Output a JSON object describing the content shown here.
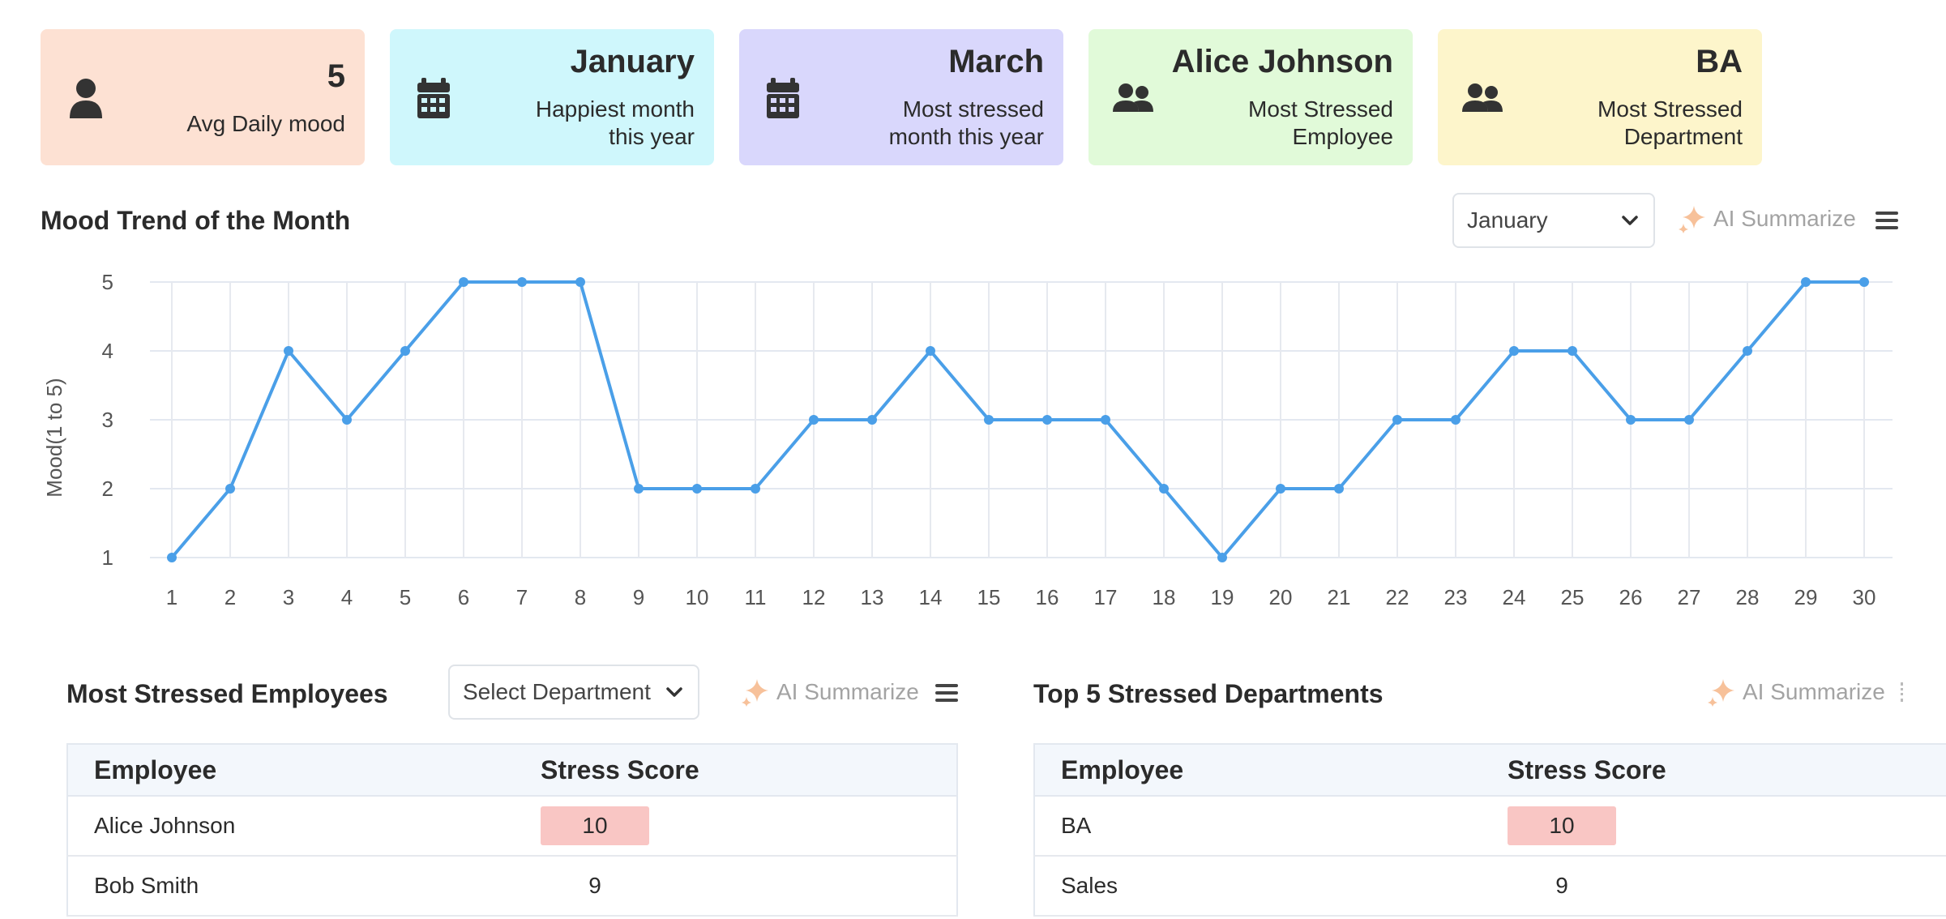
{
  "cards": [
    {
      "title": "5",
      "subtitle": "Avg Daily mood",
      "icon": "user-icon",
      "bg": "#fde1d3"
    },
    {
      "title": "January",
      "subtitle": "Happiest month this year",
      "icon": "calendar-icon",
      "bg": "#cff7fc"
    },
    {
      "title": "March",
      "subtitle": "Most stressed month this year",
      "icon": "calendar-icon",
      "bg": "#d9d7fc"
    },
    {
      "title": "Alice Johnson",
      "subtitle": "Most Stressed Employee",
      "icon": "users-icon",
      "bg": "#e1fad9"
    },
    {
      "title": "BA",
      "subtitle": "Most Stressed Department",
      "icon": "users-icon",
      "bg": "#fdf5cb"
    }
  ],
  "mood_trend": {
    "title": "Mood Trend of the Month",
    "month_select": "January",
    "ai_label": "AI Summarize"
  },
  "chart_data": {
    "type": "line",
    "x": [
      1,
      2,
      3,
      4,
      5,
      6,
      7,
      8,
      9,
      10,
      11,
      12,
      13,
      14,
      15,
      16,
      17,
      18,
      19,
      20,
      21,
      22,
      23,
      24,
      25,
      26,
      27,
      28,
      29,
      30
    ],
    "series": [
      {
        "values": [
          1,
          2,
          4,
          3,
          4,
          5,
          5,
          5,
          2,
          2,
          2,
          3,
          3,
          4,
          3,
          3,
          3,
          2,
          1,
          2,
          2,
          3,
          3,
          4,
          4,
          3,
          3,
          4,
          5,
          5
        ]
      }
    ],
    "title": "",
    "xlabel": "",
    "ylabel": "Mood(1 to 5)",
    "ylim": [
      1,
      5
    ],
    "yticks": [
      "1",
      "2",
      "3",
      "4",
      "5"
    ],
    "grid": true,
    "line_color": "#4a9fe8"
  },
  "employees": {
    "title": "Most Stressed Employees",
    "select_placeholder": "Select Department",
    "ai_label": "AI Summarize",
    "headers": [
      "Employee",
      "Stress Score"
    ],
    "rows": [
      {
        "name": "Alice Johnson",
        "score": "10"
      },
      {
        "name": "Bob Smith",
        "score": "9"
      }
    ]
  },
  "departments": {
    "title": "Top 5 Stressed Departments",
    "ai_label": "AI Summarize",
    "headers": [
      "Employee",
      "Stress Score"
    ],
    "rows": [
      {
        "name": "BA",
        "score": "10"
      },
      {
        "name": "Sales",
        "score": "9"
      }
    ]
  },
  "colors": {
    "highlight": "#f9c6c4",
    "accent_sparkle": "#f7c19a"
  }
}
